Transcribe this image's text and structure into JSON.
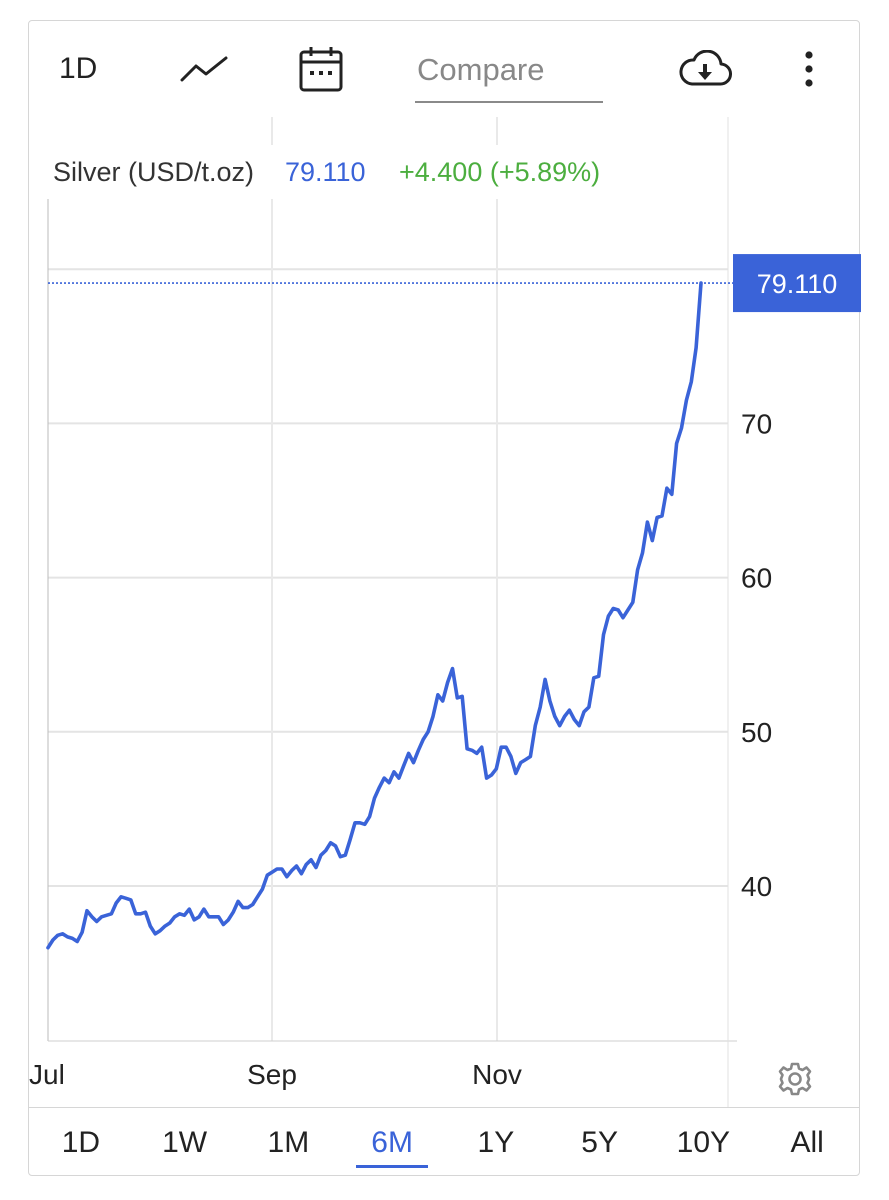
{
  "toolbar": {
    "period_label": "1D",
    "compare_placeholder": "Compare",
    "icons": [
      "line-chart-icon",
      "calendar-icon",
      "cloud-download-icon",
      "more-vertical-icon"
    ]
  },
  "legend": {
    "name": "Silver (USD/t.oz)",
    "price": "79.110",
    "change": "+4.400 (+5.89%)"
  },
  "last_price_tag": "79.110",
  "colors": {
    "line": "#3a63d8",
    "change": "#4cae3f",
    "tag": "#3a63d8"
  },
  "range_tabs": [
    "1D",
    "1W",
    "1M",
    "6M",
    "1Y",
    "5Y",
    "10Y",
    "All"
  ],
  "active_range": "6M",
  "chart_data": {
    "type": "line",
    "x_tick_labels": [
      "Jul",
      "Sep",
      "Nov"
    ],
    "y_ticks": [
      40,
      50,
      60,
      70
    ],
    "ylim": [
      30,
      84
    ],
    "grid": true,
    "series": [
      {
        "name": "Silver (USD/t.oz)",
        "values": [
          36.0,
          36.5,
          36.8,
          36.9,
          36.7,
          36.6,
          36.4,
          37.0,
          38.4,
          38.0,
          37.7,
          38.0,
          38.1,
          38.2,
          38.9,
          39.3,
          39.2,
          39.1,
          38.2,
          38.2,
          38.3,
          37.4,
          36.9,
          37.1,
          37.4,
          37.6,
          38.0,
          38.2,
          38.1,
          38.5,
          37.8,
          38.0,
          38.5,
          38.0,
          38.0,
          38.0,
          37.5,
          37.8,
          38.3,
          39.0,
          38.6,
          38.6,
          38.8,
          39.3,
          39.8,
          40.7,
          40.9,
          41.1,
          41.1,
          40.6,
          41.0,
          41.3,
          40.8,
          41.4,
          41.7,
          41.2,
          42.0,
          42.3,
          42.8,
          42.6,
          41.9,
          42.0,
          43.0,
          44.1,
          44.1,
          44.0,
          44.5,
          45.7,
          46.4,
          47.0,
          46.7,
          47.4,
          47.0,
          47.8,
          48.6,
          48.0,
          48.8,
          49.5,
          50.0,
          51.0,
          52.4,
          52.0,
          53.2,
          54.1,
          52.2,
          52.3,
          48.9,
          48.8,
          48.6,
          49.0,
          47.0,
          47.2,
          47.6,
          49.0,
          49.0,
          48.4,
          47.3,
          48.0,
          48.2,
          48.4,
          50.4,
          51.6,
          53.4,
          52.0,
          51.0,
          50.4,
          51.0,
          51.4,
          50.8,
          50.4,
          51.3,
          51.6,
          53.5,
          53.6,
          56.3,
          57.5,
          58.0,
          57.9,
          57.4,
          57.9,
          58.4,
          60.5,
          61.6,
          63.6,
          62.4,
          63.9,
          64.0,
          65.8,
          65.4,
          68.7,
          69.7,
          71.5,
          72.7,
          74.9,
          79.1
        ]
      }
    ]
  }
}
